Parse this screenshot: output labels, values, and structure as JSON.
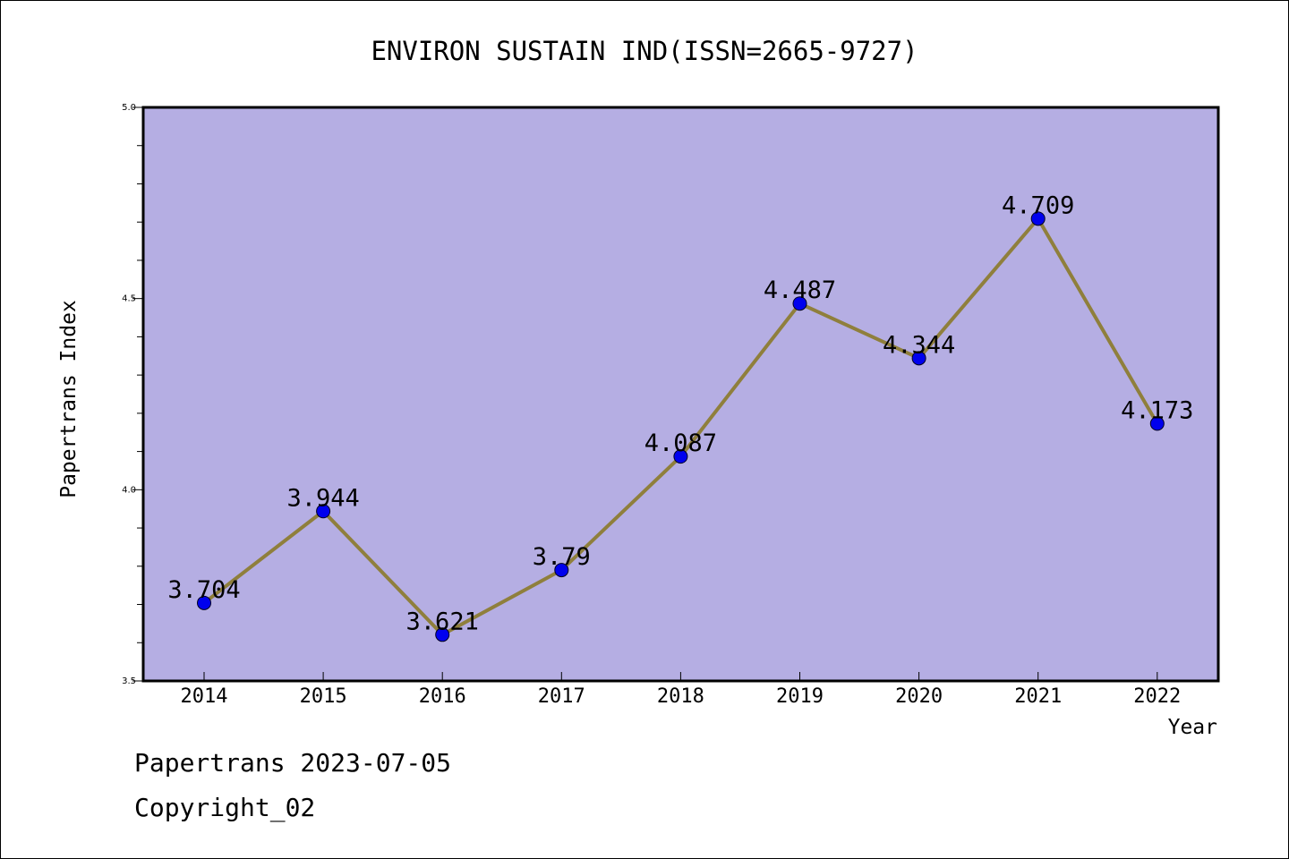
{
  "chart_data": {
    "type": "line",
    "title": "ENVIRON SUSTAIN IND(ISSN=2665-9727)",
    "xlabel": "Year",
    "ylabel": "Papertrans Index",
    "categories": [
      "2014",
      "2015",
      "2016",
      "2017",
      "2018",
      "2019",
      "2020",
      "2021",
      "2022"
    ],
    "series": [
      {
        "values": [
          3.704,
          3.944,
          3.621,
          3.79,
          4.087,
          4.487,
          4.344,
          4.709,
          4.173
        ],
        "labels": [
          "3.704",
          "3.944",
          "3.621",
          "3.79",
          "4.087",
          "4.487",
          "4.344",
          "4.709",
          "4.173"
        ]
      }
    ],
    "ylim": [
      3.5,
      5.0
    ],
    "yticks": [
      "3.5",
      "4.0",
      "4.5",
      "5.0"
    ],
    "grid": false,
    "colors": {
      "plot_background": "#b5aee3",
      "line": "#8f7f3c",
      "marker": "#0000ee"
    }
  },
  "footer": {
    "line1": "Papertrans 2023-07-05",
    "line2": "Copyright_02"
  }
}
